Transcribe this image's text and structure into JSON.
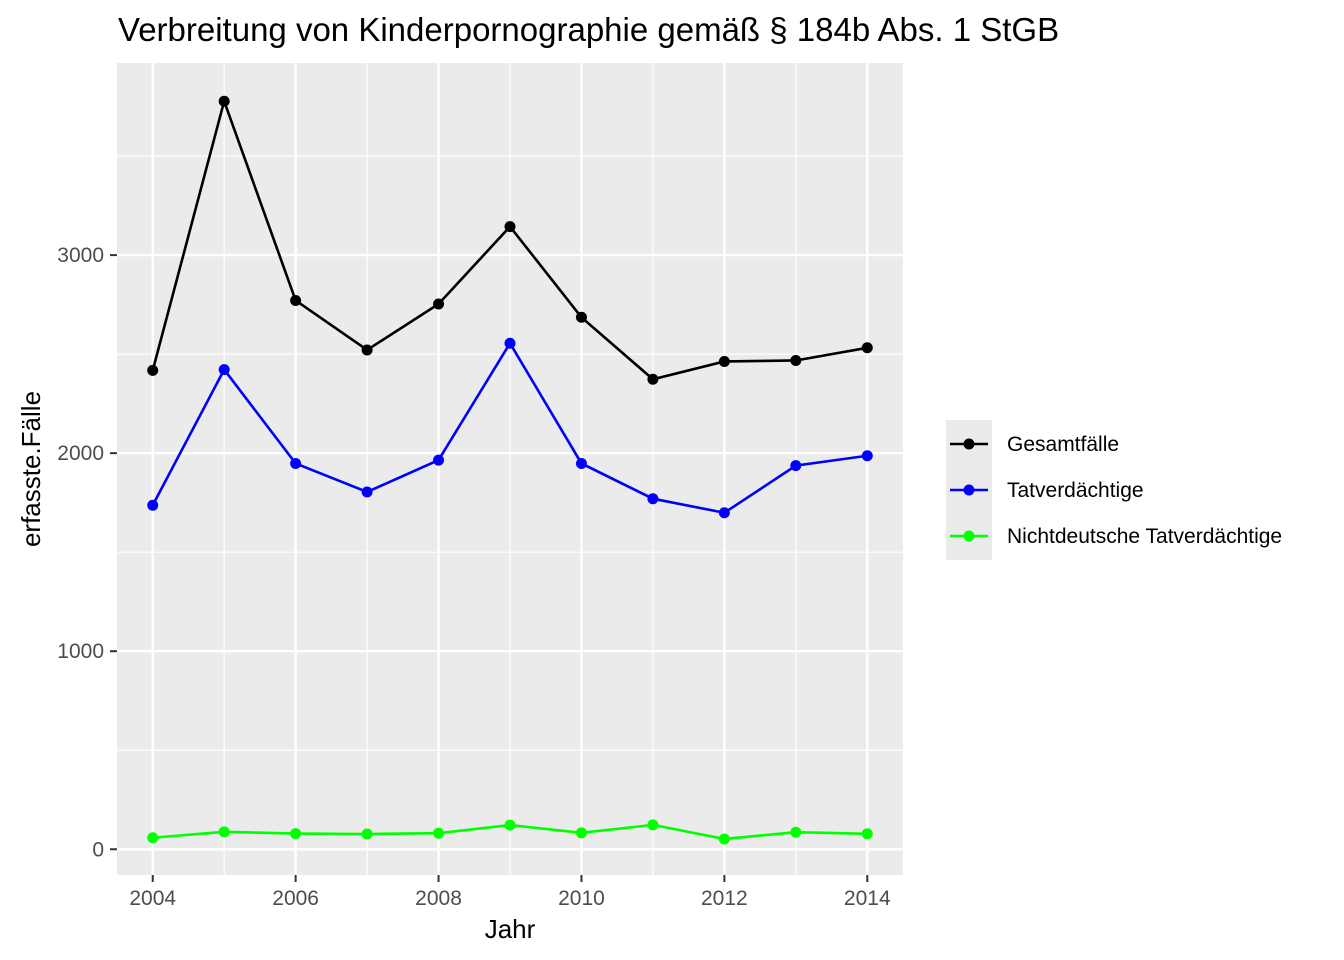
{
  "chart_data": {
    "type": "line",
    "title": "Verbreitung von Kinderpornographie gemäß § 184b Abs. 1 StGB",
    "xlabel": "Jahr",
    "ylabel": "erfasste.Fälle",
    "x": [
      2004,
      2005,
      2006,
      2007,
      2008,
      2009,
      2010,
      2011,
      2012,
      2013,
      2014
    ],
    "xlim": [
      2003.5,
      2014.5
    ],
    "ylim": [
      -130,
      3970
    ],
    "x_ticks": [
      "2004",
      "2006",
      "2008",
      "2010",
      "2012",
      "2014"
    ],
    "x_tick_values": [
      2004,
      2006,
      2008,
      2010,
      2012,
      2014
    ],
    "y_ticks": [
      "0",
      "1000",
      "2000",
      "3000"
    ],
    "y_tick_values": [
      0,
      1000,
      2000,
      3000
    ],
    "grid": true,
    "legend_position": "right",
    "series": [
      {
        "name": "Gesamtfälle",
        "color": "#000000",
        "values": [
          2418,
          3777,
          2771,
          2521,
          2753,
          3144,
          2686,
          2373,
          2463,
          2468,
          2532
        ]
      },
      {
        "name": "Tatverdächtige",
        "color": "#0000ff",
        "values": [
          1737,
          2422,
          1948,
          1804,
          1965,
          2555,
          1948,
          1770,
          1699,
          1937,
          1987
        ]
      },
      {
        "name": "Nichtdeutsche Tatverdächtige",
        "color": "#00ff00",
        "values": [
          58,
          88,
          79,
          77,
          81,
          122,
          83,
          123,
          52,
          86,
          78
        ]
      }
    ]
  }
}
